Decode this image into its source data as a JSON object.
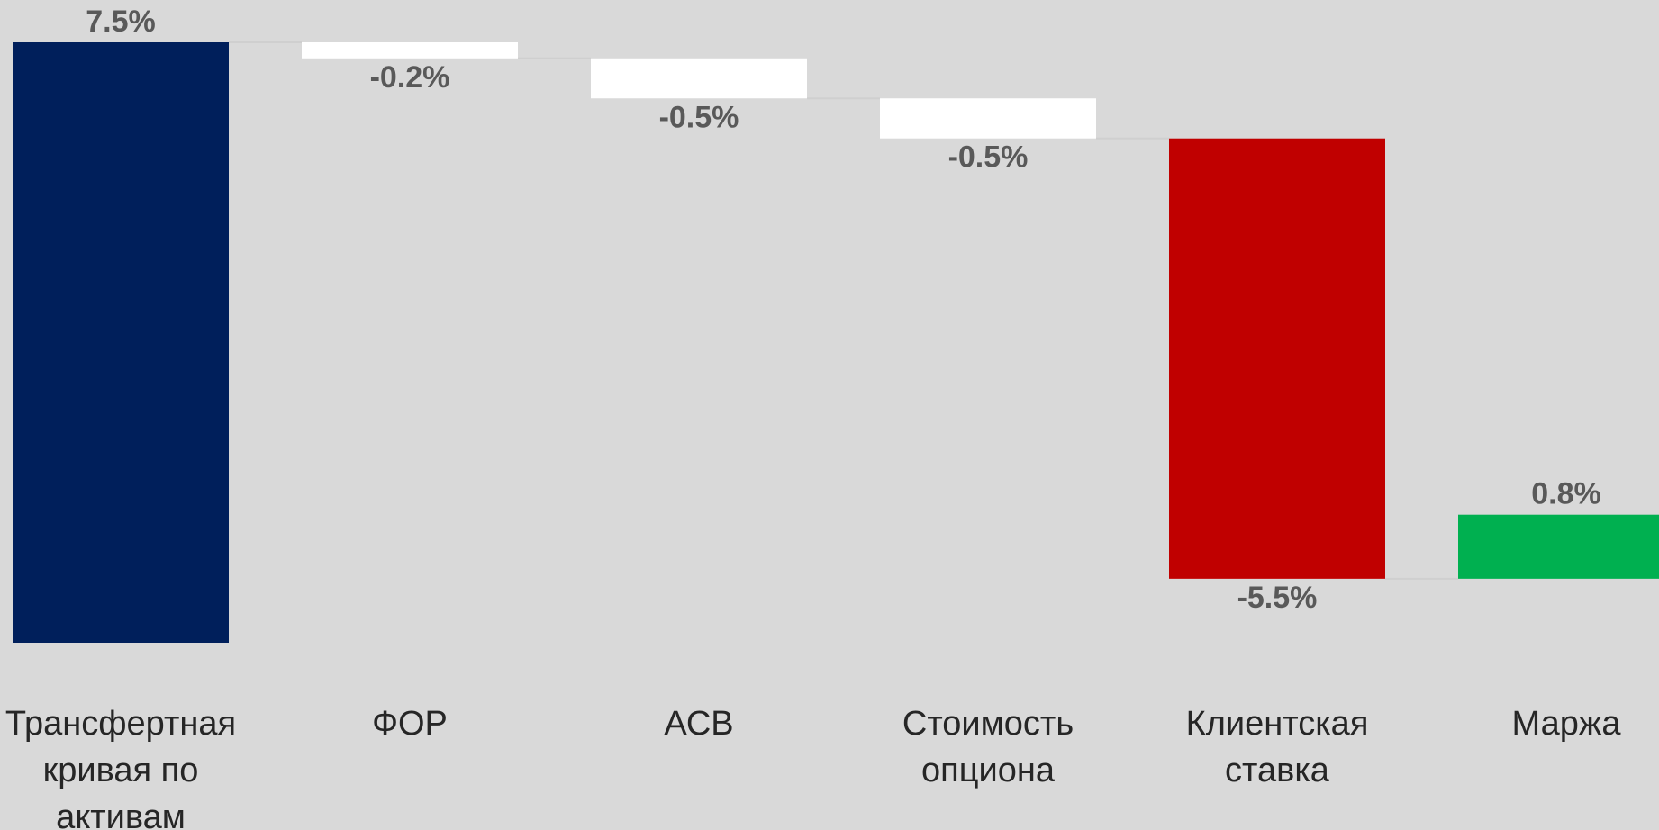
{
  "chart_data": {
    "type": "waterfall",
    "categories": [
      "Трансфертная кривая по активам",
      "ФОР",
      "АСВ",
      "Стоимость опциона",
      "Клиентская ставка",
      "Маржа"
    ],
    "series": [
      {
        "colors": [
          "#001f5b",
          "#ffffff",
          "#ffffff",
          "#ffffff",
          "#c00000",
          "#00b050"
        ],
        "values": [
          7.5,
          -0.2,
          -0.5,
          -0.5,
          -5.5,
          0.8
        ],
        "value_labels": [
          "7.5%",
          "-0.2%",
          "-0.5%",
          "-0.5%",
          "-5.5%",
          "0.8%"
        ]
      }
    ]
  }
}
